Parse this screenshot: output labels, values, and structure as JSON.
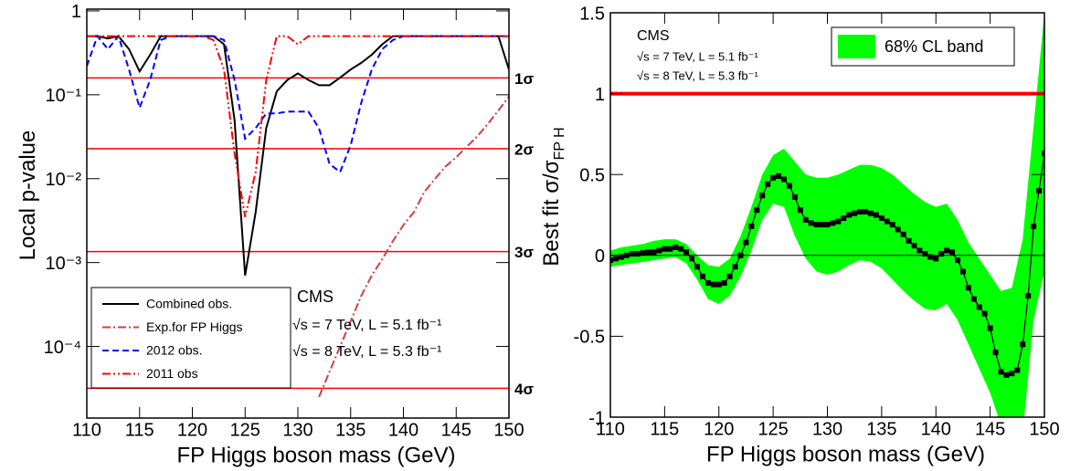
{
  "chart_data": [
    {
      "type": "line",
      "xlabel": "FP Higgs boson mass (GeV)",
      "ylabel": "Local p-value",
      "log_y": true,
      "xlim": [
        110,
        150
      ],
      "ylim": [
        1.4e-05,
        1.05
      ],
      "xticks": [
        110,
        115,
        120,
        125,
        130,
        135,
        140,
        145,
        150
      ],
      "yticks": [
        1,
        {
          "value": 0.1,
          "label": "10⁻¹"
        },
        {
          "value": 0.01,
          "label": "10⁻²"
        },
        {
          "value": 0.001,
          "label": "10⁻³"
        },
        {
          "value": 0.0001,
          "label": "10⁻⁴"
        }
      ],
      "legend_loc": "lower left",
      "x": [
        110,
        111,
        112,
        113,
        114,
        115,
        116,
        117,
        118,
        119,
        120,
        121,
        122,
        123,
        124,
        125,
        126,
        127,
        128,
        129,
        130,
        131,
        132,
        133,
        134,
        135,
        136,
        137,
        138,
        139,
        140,
        141,
        142,
        143,
        144,
        145,
        146,
        147,
        148,
        149,
        150
      ],
      "series": [
        {
          "name": "Combined obs.",
          "color": "#000000",
          "dash": "solid",
          "values": [
            0.5,
            0.5,
            0.47,
            0.5,
            0.35,
            0.19,
            0.3,
            0.5,
            0.5,
            0.5,
            0.5,
            0.5,
            0.5,
            0.4,
            0.05,
            0.0007,
            0.004,
            0.04,
            0.11,
            0.15,
            0.18,
            0.15,
            0.13,
            0.13,
            0.16,
            0.2,
            0.24,
            0.3,
            0.4,
            0.5,
            0.5,
            0.5,
            0.5,
            0.5,
            0.5,
            0.5,
            0.5,
            0.5,
            0.5,
            0.5,
            0.2
          ]
        },
        {
          "name": "Exp.for FP Higgs",
          "color": "#d04040",
          "dash": "dashdot",
          "values": [
            null,
            null,
            null,
            null,
            null,
            null,
            null,
            null,
            null,
            null,
            null,
            null,
            null,
            null,
            null,
            null,
            null,
            null,
            null,
            null,
            null,
            null,
            2.5e-05,
            5e-05,
            0.0001,
            0.0002,
            0.0004,
            0.0007,
            0.0011,
            0.0018,
            0.0028,
            0.004,
            0.007,
            0.01,
            0.014,
            0.018,
            0.024,
            0.032,
            0.045,
            0.065,
            0.095
          ]
        },
        {
          "name": "2012 obs.",
          "color": "#0000ff",
          "dash": "dashed",
          "values": [
            0.22,
            0.5,
            0.35,
            0.5,
            0.2,
            0.07,
            0.15,
            0.45,
            0.5,
            0.5,
            0.5,
            0.5,
            0.5,
            0.45,
            0.15,
            0.03,
            0.04,
            0.06,
            0.06,
            0.063,
            0.063,
            0.063,
            0.04,
            0.015,
            0.012,
            0.025,
            0.08,
            0.2,
            0.35,
            0.45,
            0.5,
            0.5,
            0.5,
            0.5,
            0.5,
            0.5,
            0.5,
            0.5,
            0.5,
            0.5,
            0.5
          ]
        },
        {
          "name": "2011 obs",
          "color": "#ff0000",
          "dash": "dashdotdot",
          "values": [
            0.5,
            0.5,
            0.5,
            0.5,
            0.5,
            0.5,
            0.5,
            0.5,
            0.5,
            0.5,
            0.5,
            0.5,
            0.45,
            0.2,
            0.02,
            0.0035,
            0.012,
            0.15,
            0.5,
            0.5,
            0.4,
            0.5,
            0.5,
            0.5,
            0.5,
            0.5,
            0.5,
            0.5,
            0.5,
            0.5,
            0.5,
            0.5,
            0.5,
            0.5,
            0.5,
            0.5,
            0.5,
            0.5,
            0.5,
            0.5,
            0.5
          ]
        }
      ],
      "hlines": [
        {
          "value": 0.1587,
          "label": "1σ"
        },
        {
          "value": 0.02275,
          "label": "2σ"
        },
        {
          "value": 0.00135,
          "label": "3σ"
        },
        {
          "value": 3.17e-05,
          "label": "4σ"
        }
      ],
      "hline_color": "#ff0000",
      "annotations": [
        "CMS",
        "√s = 7 TeV, L = 5.1 fb⁻¹",
        "√s = 8 TeV, L = 5.3 fb⁻¹"
      ]
    },
    {
      "type": "band",
      "xlabel": "FP Higgs boson mass (GeV)",
      "ylabel": "Best fit σ/σ",
      "ylabel_sub": "FP H",
      "log_y": false,
      "xlim": [
        110,
        150
      ],
      "ylim": [
        -1,
        1.5
      ],
      "xticks": [
        110,
        115,
        120,
        125,
        130,
        135,
        140,
        145,
        150
      ],
      "yticks": [
        -1,
        -0.5,
        0,
        0.5,
        1,
        1.5
      ],
      "legend_loc": "upper right",
      "hline": 1,
      "hline_color": "#ff0000",
      "band": {
        "name": "68% CL band",
        "color": "#00ff00",
        "x": [
          110,
          111,
          112,
          113,
          114,
          115,
          116,
          117,
          118,
          119,
          120,
          121,
          122,
          123,
          124,
          125,
          126,
          127,
          128,
          129,
          130,
          131,
          132,
          133,
          134,
          135,
          136,
          137,
          138,
          139,
          140,
          141,
          142,
          143,
          144,
          145,
          146,
          147,
          148,
          149,
          150
        ],
        "upper": [
          0.03,
          0.05,
          0.06,
          0.07,
          0.09,
          0.1,
          0.1,
          0.07,
          0.0,
          -0.06,
          -0.07,
          -0.02,
          0.12,
          0.3,
          0.5,
          0.62,
          0.66,
          0.58,
          0.5,
          0.48,
          0.48,
          0.5,
          0.53,
          0.56,
          0.56,
          0.54,
          0.5,
          0.44,
          0.38,
          0.33,
          0.3,
          0.32,
          0.22,
          0.08,
          -0.02,
          -0.12,
          -0.22,
          -0.2,
          0.1,
          0.8,
          1.5
        ],
        "lower": [
          -0.07,
          -0.06,
          -0.05,
          -0.04,
          -0.03,
          -0.02,
          -0.01,
          -0.05,
          -0.15,
          -0.27,
          -0.3,
          -0.25,
          -0.13,
          0.03,
          0.22,
          0.32,
          0.3,
          0.12,
          -0.02,
          -0.1,
          -0.12,
          -0.1,
          -0.06,
          -0.03,
          -0.04,
          -0.08,
          -0.15,
          -0.22,
          -0.28,
          -0.33,
          -0.34,
          -0.3,
          -0.4,
          -0.55,
          -0.7,
          -0.85,
          -1.05,
          -1.2,
          -1.1,
          -0.4,
          -0.1
        ]
      },
      "fit": {
        "color": "#000000",
        "x": [
          110,
          110.5,
          111,
          111.5,
          112,
          112.5,
          113,
          113.5,
          114,
          114.5,
          115,
          115.5,
          116,
          116.5,
          117,
          117.5,
          118,
          118.5,
          119,
          119.5,
          120,
          120.5,
          121,
          121.5,
          122,
          122.5,
          123,
          123.5,
          124,
          124.5,
          125,
          125.5,
          126,
          126.5,
          127,
          127.5,
          128,
          128.5,
          129,
          129.5,
          130,
          130.5,
          131,
          131.5,
          132,
          132.5,
          133,
          133.5,
          134,
          134.5,
          135,
          135.5,
          136,
          136.5,
          137,
          137.5,
          138,
          138.5,
          139,
          139.5,
          140,
          140.5,
          141,
          141.5,
          142,
          142.5,
          143,
          143.5,
          144,
          144.5,
          145,
          145.5,
          146,
          146.5,
          147,
          147.5,
          148,
          148.5,
          149,
          149.5,
          150
        ],
        "values": [
          -0.03,
          -0.02,
          -0.01,
          0.0,
          0.01,
          0.01,
          0.015,
          0.02,
          0.02,
          0.03,
          0.04,
          0.04,
          0.05,
          0.04,
          0.02,
          -0.02,
          -0.07,
          -0.13,
          -0.17,
          -0.18,
          -0.18,
          -0.17,
          -0.13,
          -0.07,
          0.0,
          0.08,
          0.18,
          0.28,
          0.37,
          0.44,
          0.48,
          0.49,
          0.47,
          0.43,
          0.36,
          0.28,
          0.22,
          0.2,
          0.19,
          0.19,
          0.19,
          0.2,
          0.21,
          0.23,
          0.25,
          0.26,
          0.27,
          0.27,
          0.26,
          0.25,
          0.23,
          0.21,
          0.19,
          0.16,
          0.13,
          0.09,
          0.06,
          0.03,
          0.01,
          -0.01,
          -0.02,
          0.01,
          0.03,
          0.02,
          -0.03,
          -0.1,
          -0.2,
          -0.27,
          -0.32,
          -0.36,
          -0.45,
          -0.6,
          -0.72,
          -0.74,
          -0.73,
          -0.71,
          -0.55,
          -0.25,
          0.18,
          0.4,
          0.63
        ]
      },
      "annotations": [
        "CMS",
        "√s = 7 TeV, L = 5.1 fb⁻¹",
        "√s = 8 TeV, L = 5.3 fb⁻¹"
      ]
    }
  ]
}
